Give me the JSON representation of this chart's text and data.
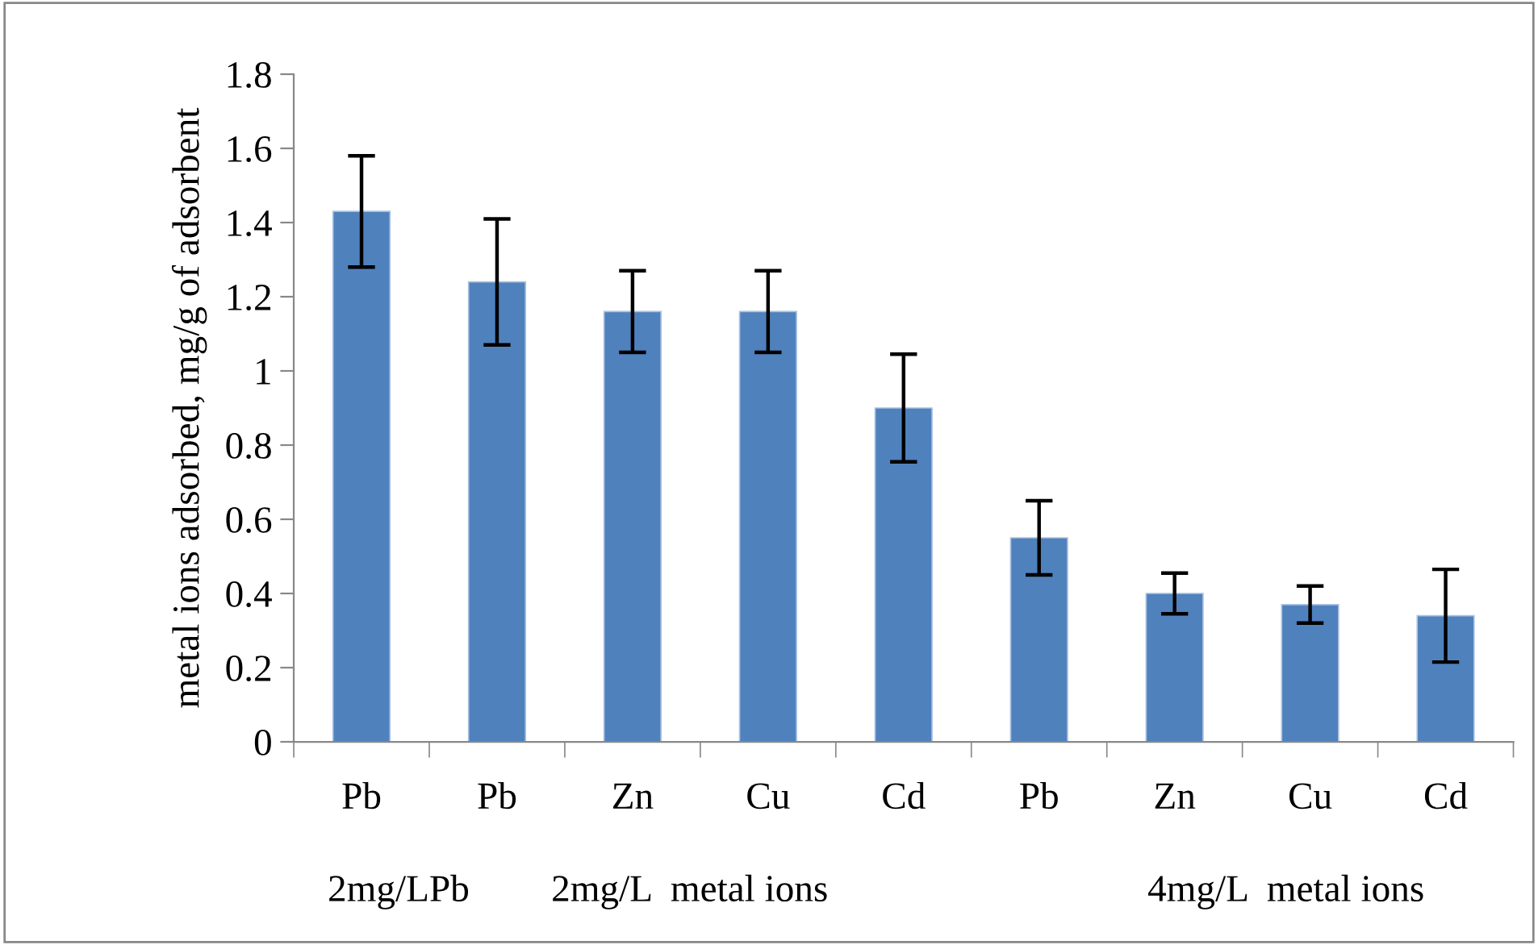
{
  "chart_data": {
    "type": "bar",
    "ylabel": "metal ions adsorbed, mg/g of adsorbent",
    "categories": [
      "Pb",
      "Pb",
      "Zn",
      "Cu",
      "Cd",
      "Pb",
      "Zn",
      "Cu",
      "Cd"
    ],
    "values": [
      1.43,
      1.24,
      1.16,
      1.16,
      0.9,
      0.55,
      0.4,
      0.37,
      0.34
    ],
    "errors": [
      0.15,
      0.17,
      0.11,
      0.11,
      0.145,
      0.1,
      0.055,
      0.05,
      0.125
    ],
    "color": "#4f81bd",
    "ylim": [
      0,
      1.8
    ],
    "yticks": [
      0,
      0.2,
      0.4,
      0.6,
      0.8,
      1,
      1.2,
      1.4,
      1.6,
      1.8
    ],
    "annotations": [
      "2mg/LPb",
      "2mg/L  metal ions",
      "4mg/L  metal ions"
    ],
    "grid": false,
    "legend": false
  }
}
